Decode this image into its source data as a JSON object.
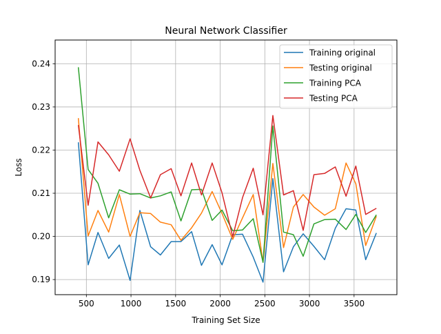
{
  "chart_data": {
    "type": "line",
    "title": "Neural Network Classifier",
    "xlabel": "Training Set Size",
    "ylabel": "Loss",
    "xlim": [
      150,
      3980
    ],
    "ylim": [
      0.1865,
      0.2455
    ],
    "xticks": [
      500,
      1000,
      1500,
      2000,
      2500,
      3000,
      3500
    ],
    "xtick_labels": [
      "500",
      "1000",
      "1500",
      "2000",
      "2500",
      "3000",
      "3500"
    ],
    "yticks": [
      0.19,
      0.2,
      0.21,
      0.22,
      0.23,
      0.24
    ],
    "ytick_labels": [
      "0.19",
      "0.20",
      "0.21",
      "0.22",
      "0.23",
      "0.24"
    ],
    "grid": true,
    "legend_position": "top-right",
    "x": [
      410,
      520,
      630,
      750,
      870,
      990,
      1100,
      1220,
      1330,
      1450,
      1560,
      1680,
      1790,
      1910,
      2020,
      2140,
      2250,
      2370,
      2480,
      2590,
      2710,
      2820,
      2930,
      3050,
      3170,
      3290,
      3410,
      3520,
      3630,
      3750
    ],
    "series": [
      {
        "name": "Training original",
        "color": "#1f77b4",
        "values": [
          0.2218,
          0.1934,
          0.2009,
          0.1949,
          0.198,
          0.1898,
          0.206,
          0.1976,
          0.1957,
          0.1988,
          0.1988,
          0.2011,
          0.1933,
          0.1981,
          0.1934,
          0.2004,
          0.2005,
          0.1952,
          0.1894,
          0.2134,
          0.1918,
          0.1976,
          0.2006,
          0.1977,
          0.1946,
          0.2019,
          0.2064,
          0.2061,
          0.1946,
          0.2008
        ]
      },
      {
        "name": "Testing original",
        "color": "#ff7f0e",
        "values": [
          0.2274,
          0.2001,
          0.206,
          0.201,
          0.2097,
          0.2,
          0.2055,
          0.2053,
          0.2033,
          0.2027,
          0.1991,
          0.202,
          0.2054,
          0.2104,
          0.2053,
          0.1993,
          0.2043,
          0.2097,
          0.194,
          0.2169,
          0.1974,
          0.2068,
          0.2097,
          0.2068,
          0.2049,
          0.2064,
          0.217,
          0.2122,
          0.1979,
          0.2047
        ]
      },
      {
        "name": "Training PCA",
        "color": "#2ca02c",
        "values": [
          0.2392,
          0.2155,
          0.2123,
          0.2043,
          0.2108,
          0.2098,
          0.2099,
          0.2089,
          0.2094,
          0.2103,
          0.2036,
          0.2108,
          0.2109,
          0.2037,
          0.2061,
          0.2013,
          0.2015,
          0.2041,
          0.194,
          0.2256,
          0.201,
          0.2004,
          0.1954,
          0.2029,
          0.2039,
          0.204,
          0.2016,
          0.2051,
          0.2009,
          0.205
        ]
      },
      {
        "name": "Testing PCA",
        "color": "#d62728",
        "values": [
          0.2258,
          0.2072,
          0.2219,
          0.2189,
          0.2151,
          0.2226,
          0.2153,
          0.2089,
          0.2143,
          0.2157,
          0.2094,
          0.217,
          0.2096,
          0.217,
          0.2101,
          0.1999,
          0.209,
          0.2158,
          0.205,
          0.228,
          0.2096,
          0.2106,
          0.2014,
          0.2143,
          0.2146,
          0.2161,
          0.2093,
          0.2163,
          0.2051,
          0.2065
        ]
      }
    ]
  }
}
